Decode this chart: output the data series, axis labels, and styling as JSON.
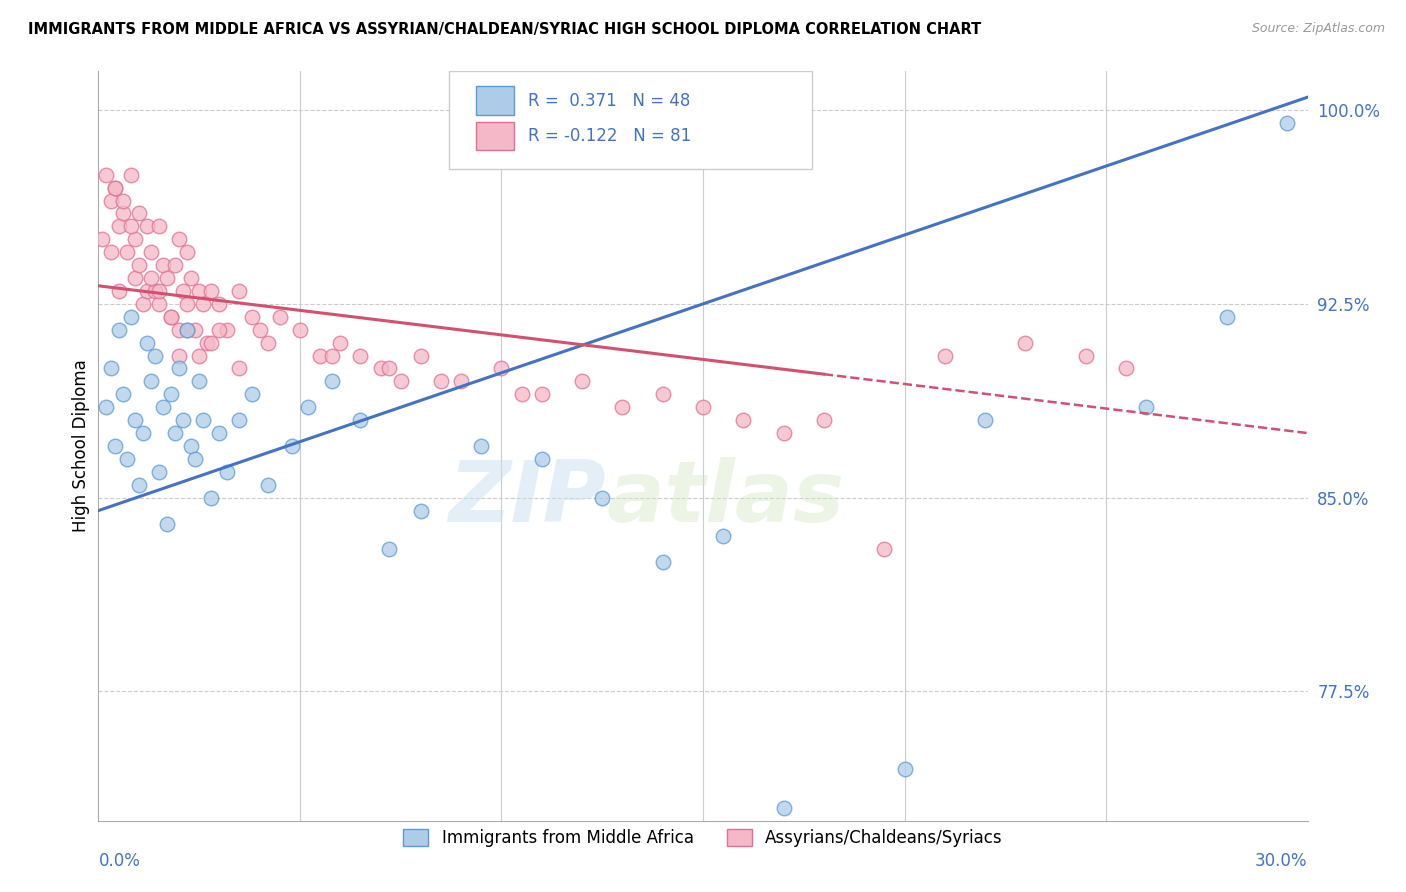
{
  "title": "IMMIGRANTS FROM MIDDLE AFRICA VS ASSYRIAN/CHALDEAN/SYRIAC HIGH SCHOOL DIPLOMA CORRELATION CHART",
  "source": "Source: ZipAtlas.com",
  "ylabel": "High School Diploma",
  "legend_blue_label": "Immigrants from Middle Africa",
  "legend_pink_label": "Assyrians/Chaldeans/Syriacs",
  "R_blue": 0.371,
  "N_blue": 48,
  "R_pink": -0.122,
  "N_pink": 81,
  "blue_color": "#aecce8",
  "blue_edge_color": "#5b9bd5",
  "blue_line_color": "#4472c4",
  "pink_color": "#f4b8c8",
  "pink_edge_color": "#e07090",
  "pink_line_color": "#d45070",
  "watermark_zip": "ZIP",
  "watermark_atlas": "atlas",
  "xmin": 0.0,
  "xmax": 30.0,
  "ymin": 72.5,
  "ymax": 101.5,
  "ytick_vals": [
    77.5,
    85.0,
    92.5,
    100.0
  ],
  "xtick_vals": [
    0,
    5,
    10,
    15,
    20,
    25,
    30
  ],
  "blue_line_y0": 84.5,
  "blue_line_y1": 100.5,
  "pink_line_y0": 93.2,
  "pink_line_y1": 87.5,
  "pink_solid_x_end": 18.0,
  "blue_scatter_x": [
    0.2,
    0.3,
    0.4,
    0.5,
    0.6,
    0.7,
    0.8,
    0.9,
    1.0,
    1.1,
    1.2,
    1.3,
    1.4,
    1.5,
    1.6,
    1.7,
    1.8,
    1.9,
    2.0,
    2.1,
    2.2,
    2.3,
    2.4,
    2.5,
    2.6,
    2.8,
    3.0,
    3.2,
    3.5,
    3.8,
    4.2,
    4.8,
    5.2,
    5.8,
    6.5,
    7.2,
    8.0,
    9.5,
    11.0,
    12.5,
    14.0,
    15.5,
    17.0,
    20.0,
    22.0,
    26.0,
    28.0,
    29.5
  ],
  "blue_scatter_y": [
    88.5,
    90.0,
    87.0,
    91.5,
    89.0,
    86.5,
    92.0,
    88.0,
    85.5,
    87.5,
    91.0,
    89.5,
    90.5,
    86.0,
    88.5,
    84.0,
    89.0,
    87.5,
    90.0,
    88.0,
    91.5,
    87.0,
    86.5,
    89.5,
    88.0,
    85.0,
    87.5,
    86.0,
    88.0,
    89.0,
    85.5,
    87.0,
    88.5,
    89.5,
    88.0,
    83.0,
    84.5,
    87.0,
    86.5,
    85.0,
    82.5,
    83.5,
    73.0,
    74.5,
    88.0,
    88.5,
    92.0,
    99.5
  ],
  "pink_scatter_x": [
    0.1,
    0.2,
    0.3,
    0.3,
    0.4,
    0.5,
    0.5,
    0.6,
    0.7,
    0.8,
    0.9,
    0.9,
    1.0,
    1.0,
    1.1,
    1.2,
    1.2,
    1.3,
    1.4,
    1.5,
    1.5,
    1.6,
    1.7,
    1.8,
    1.9,
    2.0,
    2.0,
    2.1,
    2.2,
    2.2,
    2.3,
    2.4,
    2.5,
    2.6,
    2.7,
    2.8,
    3.0,
    3.2,
    3.5,
    3.8,
    4.0,
    4.5,
    5.0,
    5.5,
    6.0,
    6.5,
    7.0,
    7.5,
    8.0,
    9.0,
    10.0,
    11.0,
    12.0,
    13.0,
    14.0,
    15.0,
    16.0,
    17.0,
    18.0,
    19.5,
    21.0,
    23.0,
    24.5,
    25.5,
    2.0,
    2.5,
    3.0,
    3.5,
    1.5,
    2.8,
    1.8,
    2.2,
    0.8,
    1.3,
    0.6,
    0.4,
    4.2,
    5.8,
    7.2,
    8.5,
    10.5
  ],
  "pink_scatter_y": [
    95.0,
    97.5,
    96.5,
    94.5,
    97.0,
    95.5,
    93.0,
    96.0,
    94.5,
    97.5,
    93.5,
    95.0,
    96.0,
    94.0,
    92.5,
    95.5,
    93.0,
    94.5,
    93.0,
    95.5,
    92.5,
    94.0,
    93.5,
    92.0,
    94.0,
    95.0,
    91.5,
    93.0,
    94.5,
    92.5,
    93.5,
    91.5,
    93.0,
    92.5,
    91.0,
    93.0,
    92.5,
    91.5,
    93.0,
    92.0,
    91.5,
    92.0,
    91.5,
    90.5,
    91.0,
    90.5,
    90.0,
    89.5,
    90.5,
    89.5,
    90.0,
    89.0,
    89.5,
    88.5,
    89.0,
    88.5,
    88.0,
    87.5,
    88.0,
    83.0,
    90.5,
    91.0,
    90.5,
    90.0,
    90.5,
    90.5,
    91.5,
    90.0,
    93.0,
    91.0,
    92.0,
    91.5,
    95.5,
    93.5,
    96.5,
    97.0,
    91.0,
    90.5,
    90.0,
    89.5,
    89.0
  ]
}
